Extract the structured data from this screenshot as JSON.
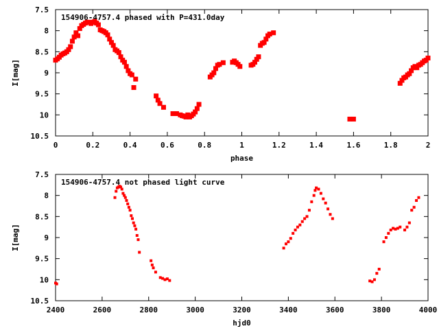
{
  "chart_data": [
    {
      "type": "scatter",
      "title": "154906-4757.4 phased with P=431.0day",
      "xlabel": "phase",
      "ylabel": "I[mag]",
      "xlim": [
        0,
        2
      ],
      "ylim": [
        10.5,
        7.5
      ],
      "y_inverted": true,
      "xticks": [
        "0",
        "0.2",
        "0.4",
        "0.6",
        "0.8",
        "1",
        "1.2",
        "1.4",
        "1.6",
        "1.8",
        "2"
      ],
      "xtick_values": [
        0,
        0.2,
        0.4,
        0.6,
        0.8,
        1,
        1.2,
        1.4,
        1.6,
        1.8,
        2
      ],
      "yticks": [
        "7.5",
        "8",
        "8.5",
        "9",
        "9.5",
        "10",
        "10.5"
      ],
      "ytick_values": [
        7.5,
        8,
        8.5,
        9,
        9.5,
        10,
        10.5
      ],
      "grid": false,
      "marker_color": "#ff0000",
      "series": [
        {
          "points": [
            [
              0.0,
              8.7
            ],
            [
              0.01,
              8.67
            ],
            [
              0.02,
              8.63
            ],
            [
              0.03,
              8.58
            ],
            [
              0.04,
              8.55
            ],
            [
              0.05,
              8.53
            ],
            [
              0.06,
              8.5
            ],
            [
              0.07,
              8.45
            ],
            [
              0.08,
              8.38
            ],
            [
              0.09,
              8.25
            ],
            [
              0.1,
              8.15
            ],
            [
              0.11,
              8.05
            ],
            [
              0.12,
              8.12
            ],
            [
              0.13,
              7.95
            ],
            [
              0.14,
              7.88
            ],
            [
              0.15,
              7.85
            ],
            [
              0.16,
              7.82
            ],
            [
              0.17,
              7.8
            ],
            [
              0.18,
              7.8
            ],
            [
              0.19,
              7.83
            ],
            [
              0.2,
              7.8
            ],
            [
              0.21,
              7.78
            ],
            [
              0.22,
              7.82
            ],
            [
              0.23,
              7.86
            ],
            [
              0.24,
              7.98
            ],
            [
              0.25,
              8.0
            ],
            [
              0.26,
              8.02
            ],
            [
              0.27,
              8.05
            ],
            [
              0.28,
              8.1
            ],
            [
              0.29,
              8.2
            ],
            [
              0.3,
              8.28
            ],
            [
              0.31,
              8.35
            ],
            [
              0.32,
              8.45
            ],
            [
              0.33,
              8.48
            ],
            [
              0.34,
              8.52
            ],
            [
              0.35,
              8.62
            ],
            [
              0.36,
              8.7
            ],
            [
              0.37,
              8.75
            ],
            [
              0.38,
              8.85
            ],
            [
              0.39,
              8.95
            ],
            [
              0.4,
              9.02
            ],
            [
              0.41,
              9.05
            ],
            [
              0.42,
              9.35
            ],
            [
              0.43,
              9.15
            ],
            [
              0.54,
              9.55
            ],
            [
              0.55,
              9.65
            ],
            [
              0.56,
              9.73
            ],
            [
              0.58,
              9.82
            ],
            [
              0.63,
              9.97
            ],
            [
              0.65,
              9.97
            ],
            [
              0.67,
              10.0
            ],
            [
              0.68,
              10.02
            ],
            [
              0.69,
              10.03
            ],
            [
              0.7,
              10.05
            ],
            [
              0.71,
              10.0
            ],
            [
              0.72,
              10.05
            ],
            [
              0.73,
              10.02
            ],
            [
              0.74,
              9.98
            ],
            [
              0.75,
              9.93
            ],
            [
              0.76,
              9.85
            ],
            [
              0.77,
              9.75
            ],
            [
              0.83,
              9.1
            ],
            [
              0.84,
              9.05
            ],
            [
              0.85,
              9.0
            ],
            [
              0.86,
              8.9
            ],
            [
              0.87,
              8.82
            ],
            [
              0.88,
              8.8
            ],
            [
              0.9,
              8.76
            ],
            [
              0.95,
              8.75
            ],
            [
              0.96,
              8.72
            ],
            [
              0.97,
              8.76
            ],
            [
              0.98,
              8.8
            ],
            [
              0.99,
              8.85
            ],
            [
              1.05,
              8.82
            ],
            [
              1.06,
              8.8
            ],
            [
              1.07,
              8.75
            ],
            [
              1.08,
              8.68
            ],
            [
              1.09,
              8.62
            ],
            [
              1.1,
              8.35
            ],
            [
              1.11,
              8.3
            ],
            [
              1.12,
              8.28
            ],
            [
              1.13,
              8.2
            ],
            [
              1.14,
              8.12
            ],
            [
              1.15,
              8.08
            ],
            [
              1.17,
              8.05
            ],
            [
              1.58,
              10.1
            ],
            [
              1.6,
              10.1
            ],
            [
              1.85,
              9.25
            ],
            [
              1.86,
              9.18
            ],
            [
              1.87,
              9.12
            ],
            [
              1.88,
              9.1
            ],
            [
              1.89,
              9.05
            ],
            [
              1.9,
              9.02
            ],
            [
              1.91,
              8.95
            ],
            [
              1.92,
              8.88
            ],
            [
              1.93,
              8.85
            ],
            [
              1.94,
              8.88
            ],
            [
              1.95,
              8.82
            ],
            [
              1.96,
              8.8
            ],
            [
              1.97,
              8.76
            ],
            [
              1.98,
              8.72
            ],
            [
              1.99,
              8.7
            ],
            [
              2.0,
              8.65
            ]
          ]
        }
      ]
    },
    {
      "type": "scatter",
      "title": "154906-4757.4 not phased light curve",
      "xlabel": "hjd0",
      "ylabel": "I[mag]",
      "xlim": [
        2400,
        4000
      ],
      "ylim": [
        10.5,
        7.5
      ],
      "y_inverted": true,
      "xticks": [
        "2400",
        "2600",
        "2800",
        "3000",
        "3200",
        "3400",
        "3600",
        "3800",
        "4000"
      ],
      "xtick_values": [
        2400,
        2600,
        2800,
        3000,
        3200,
        3400,
        3600,
        3800,
        4000
      ],
      "yticks": [
        "7.5",
        "8",
        "8.5",
        "9",
        "9.5",
        "10",
        "10.5"
      ],
      "ytick_values": [
        7.5,
        8,
        8.5,
        9,
        9.5,
        10,
        10.5
      ],
      "grid": false,
      "marker_color": "#ff0000",
      "series": [
        {
          "points": [
            [
              2400,
              10.08
            ],
            [
              2405,
              10.1
            ],
            [
              2655,
              8.05
            ],
            [
              2660,
              7.9
            ],
            [
              2665,
              7.82
            ],
            [
              2670,
              7.8
            ],
            [
              2675,
              7.78
            ],
            [
              2680,
              7.8
            ],
            [
              2685,
              7.85
            ],
            [
              2690,
              7.95
            ],
            [
              2695,
              8.0
            ],
            [
              2700,
              8.05
            ],
            [
              2705,
              8.12
            ],
            [
              2710,
              8.2
            ],
            [
              2715,
              8.28
            ],
            [
              2720,
              8.35
            ],
            [
              2725,
              8.48
            ],
            [
              2730,
              8.55
            ],
            [
              2735,
              8.65
            ],
            [
              2740,
              8.72
            ],
            [
              2745,
              8.8
            ],
            [
              2750,
              8.95
            ],
            [
              2755,
              9.05
            ],
            [
              2760,
              9.35
            ],
            [
              2810,
              9.55
            ],
            [
              2815,
              9.65
            ],
            [
              2820,
              9.72
            ],
            [
              2830,
              9.82
            ],
            [
              2850,
              9.95
            ],
            [
              2860,
              9.97
            ],
            [
              2870,
              10.0
            ],
            [
              2880,
              9.98
            ],
            [
              2890,
              10.02
            ],
            [
              3380,
              9.25
            ],
            [
              3390,
              9.15
            ],
            [
              3400,
              9.1
            ],
            [
              3410,
              9.02
            ],
            [
              3420,
              8.9
            ],
            [
              3430,
              8.82
            ],
            [
              3440,
              8.75
            ],
            [
              3450,
              8.7
            ],
            [
              3460,
              8.62
            ],
            [
              3470,
              8.55
            ],
            [
              3480,
              8.5
            ],
            [
              3490,
              8.35
            ],
            [
              3500,
              8.15
            ],
            [
              3510,
              8.0
            ],
            [
              3515,
              7.88
            ],
            [
              3520,
              7.82
            ],
            [
              3530,
              7.85
            ],
            [
              3540,
              7.95
            ],
            [
              3550,
              8.08
            ],
            [
              3560,
              8.18
            ],
            [
              3570,
              8.32
            ],
            [
              3580,
              8.45
            ],
            [
              3590,
              8.55
            ],
            [
              3750,
              10.03
            ],
            [
              3760,
              10.05
            ],
            [
              3770,
              10.0
            ],
            [
              3780,
              9.85
            ],
            [
              3790,
              9.75
            ],
            [
              3810,
              9.1
            ],
            [
              3820,
              9.0
            ],
            [
              3830,
              8.9
            ],
            [
              3840,
              8.82
            ],
            [
              3850,
              8.78
            ],
            [
              3860,
              8.8
            ],
            [
              3870,
              8.78
            ],
            [
              3880,
              8.75
            ],
            [
              3900,
              8.82
            ],
            [
              3910,
              8.75
            ],
            [
              3920,
              8.65
            ],
            [
              3930,
              8.35
            ],
            [
              3940,
              8.28
            ],
            [
              3950,
              8.12
            ],
            [
              3960,
              8.05
            ]
          ]
        }
      ]
    }
  ]
}
